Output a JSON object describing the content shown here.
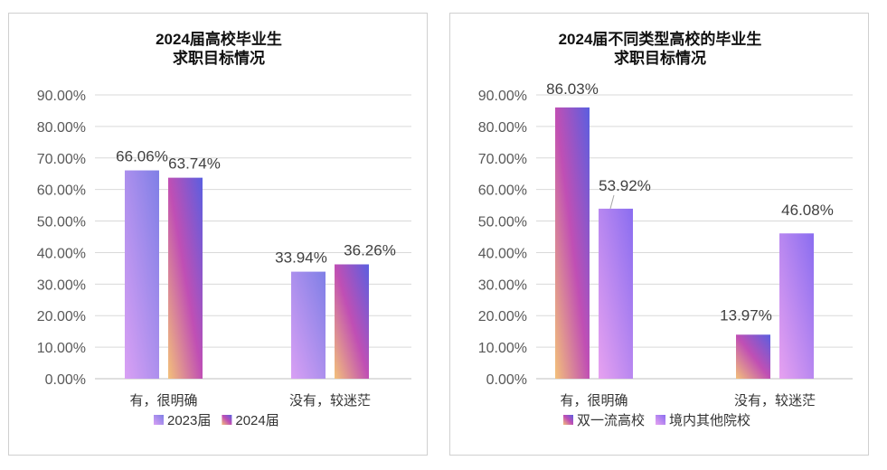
{
  "chart_data": [
    {
      "type": "bar",
      "title_lines": [
        "2024届高校毕业生",
        "求职目标情况"
      ],
      "categories": [
        "有，很明确",
        "没有，较迷茫"
      ],
      "series": [
        {
          "name": "2023届",
          "values": [
            66.06,
            33.94
          ],
          "labels": [
            "66.06%",
            "33.94%"
          ],
          "gradient": [
            "#d9a0f4",
            "#7f7fe6"
          ]
        },
        {
          "name": "2024届",
          "values": [
            63.74,
            36.26
          ],
          "labels": [
            "63.74%",
            "36.26%"
          ],
          "gradient": [
            "#f3c07a",
            "#c04fb4",
            "#5a5fe0"
          ]
        }
      ],
      "ylim": [
        0,
        90
      ],
      "yticks": [
        "0.00%",
        "10.00%",
        "20.00%",
        "30.00%",
        "40.00%",
        "50.00%",
        "60.00%",
        "70.00%",
        "80.00%",
        "90.00%"
      ],
      "grid": true,
      "legend": "bottom"
    },
    {
      "type": "bar",
      "title_lines": [
        "2024届不同类型高校的毕业生",
        "求职目标情况"
      ],
      "categories": [
        "有，很明确",
        "没有，较迷茫"
      ],
      "series": [
        {
          "name": "双一流高校",
          "values": [
            86.03,
            13.97
          ],
          "labels": [
            "86.03%",
            "13.97%"
          ],
          "gradient": [
            "#f3c07a",
            "#c04fb4",
            "#5a5fe0"
          ]
        },
        {
          "name": "境内其他院校",
          "values": [
            53.92,
            46.08
          ],
          "labels": [
            "53.92%",
            "46.08%"
          ],
          "gradient": [
            "#e7a2f0",
            "#8a6df0"
          ]
        }
      ],
      "ylim": [
        0,
        90
      ],
      "yticks": [
        "0.00%",
        "10.00%",
        "20.00%",
        "30.00%",
        "40.00%",
        "50.00%",
        "60.00%",
        "70.00%",
        "80.00%",
        "90.00%"
      ],
      "grid": true,
      "legend": "bottom"
    }
  ]
}
